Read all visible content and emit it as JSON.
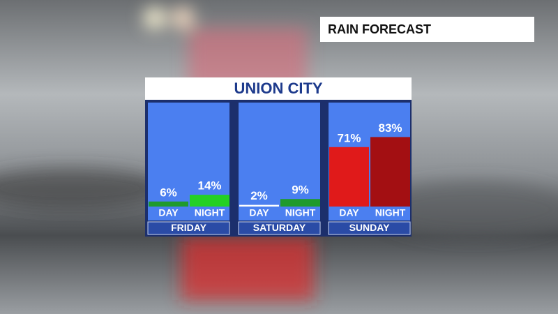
{
  "header": "RAIN FORECAST",
  "chart_data": {
    "type": "bar",
    "title": "UNION CITY",
    "categories": [
      "FRIDAY",
      "SATURDAY",
      "SUNDAY"
    ],
    "series": [
      {
        "name": "DAY",
        "values": [
          6,
          2,
          71
        ],
        "value_labels": [
          "6%",
          "2%",
          "71%"
        ],
        "colors": [
          "#1f9a2c",
          "#ffffff",
          "#e01a1a"
        ]
      },
      {
        "name": "NIGHT",
        "values": [
          14,
          9,
          83
        ],
        "value_labels": [
          "14%",
          "9%",
          "83%"
        ],
        "colors": [
          "#24d024",
          "#1f9a2c",
          "#a30f12"
        ]
      }
    ]
  }
}
